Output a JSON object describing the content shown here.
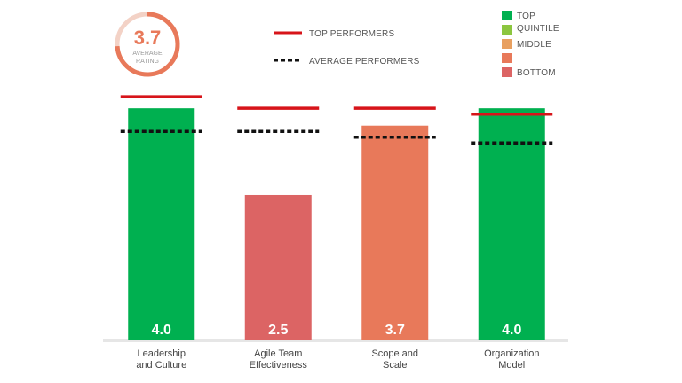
{
  "rating": {
    "value": "3.7",
    "caption_line1": "AVERAGE",
    "caption_line2": "RATING",
    "fraction": 0.74
  },
  "legend_lines": [
    {
      "label": "TOP PERFORMERS",
      "style": "solid",
      "color": "#d7141a"
    },
    {
      "label": "AVERAGE PERFORMERS",
      "style": "dashed",
      "color": "#111111"
    }
  ],
  "legend_quintiles": [
    {
      "label_lines": [
        "TOP",
        "QUINTILE"
      ],
      "color": "#00b050"
    },
    {
      "label_lines": [],
      "color": "#8cc63f"
    },
    {
      "label_lines": [
        "MIDDLE"
      ],
      "color": "#e8a060"
    },
    {
      "label_lines": [],
      "color": "#e8795a"
    },
    {
      "label_lines": [
        "BOTTOM"
      ],
      "color": "#dc6464"
    }
  ],
  "chart_data": {
    "type": "bar",
    "categories": [
      [
        "Leadership",
        "and Culture"
      ],
      [
        "Agile Team",
        "Effectiveness"
      ],
      [
        "Scope and",
        "Scale"
      ],
      [
        "Organization",
        "Model"
      ]
    ],
    "values": [
      4.0,
      2.5,
      3.7,
      4.0
    ],
    "value_labels": [
      "4.0",
      "2.5",
      "3.7",
      "4.0"
    ],
    "bar_colors": [
      "#00b050",
      "#dc6464",
      "#e8795a",
      "#00b050"
    ],
    "top_performers": [
      4.2,
      4.0,
      4.0,
      3.9
    ],
    "average_performers": [
      3.6,
      3.6,
      3.5,
      3.4
    ],
    "ylim": [
      0,
      4.8
    ],
    "grid": false
  }
}
